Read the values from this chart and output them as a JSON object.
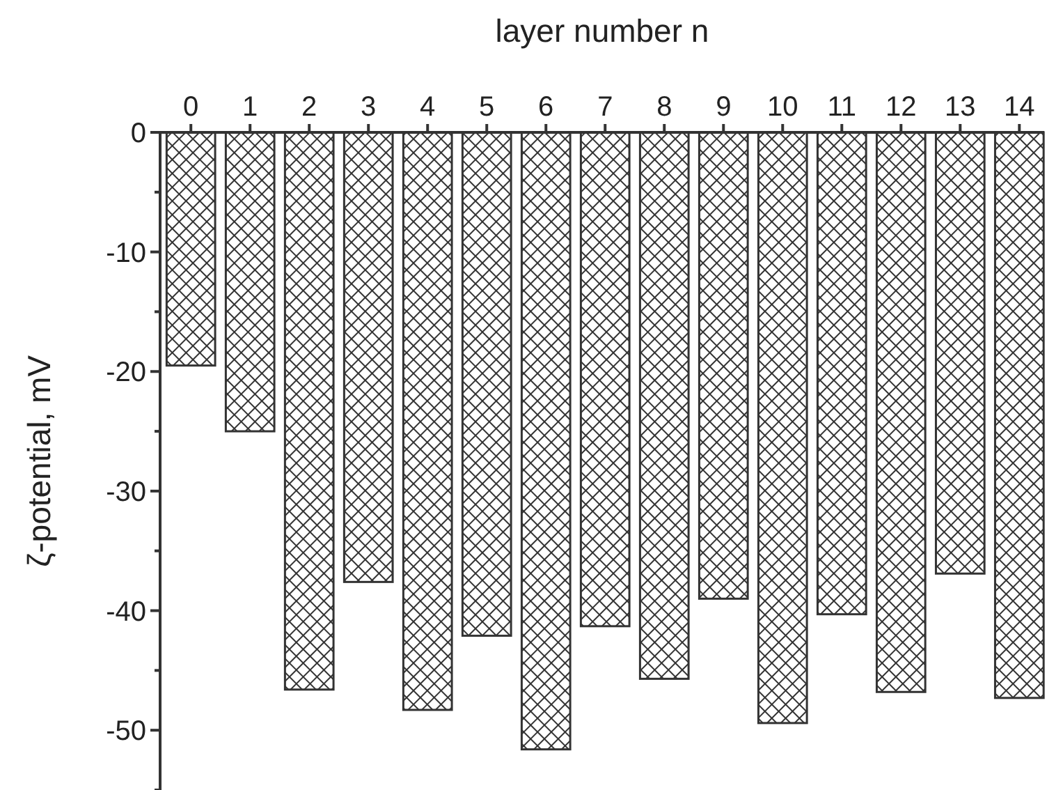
{
  "chart_data": {
    "type": "bar",
    "xlabel": "layer number n",
    "ylabel": "ζ-potential, mV",
    "x": [
      0,
      1,
      2,
      3,
      4,
      5,
      6,
      7,
      8,
      9,
      10,
      11,
      12,
      13,
      14
    ],
    "xlim": [
      -0.52,
      14.42
    ],
    "xticks": [
      0,
      1,
      2,
      3,
      4,
      5,
      6,
      7,
      8,
      9,
      10,
      11,
      12,
      13,
      14
    ],
    "series": [
      {
        "color": "#333333",
        "values": [
          -19.5,
          -25,
          -46.6,
          -37.6,
          -48.3,
          -42.1,
          -51.6,
          -41.3,
          -45.7,
          -39,
          -49.4,
          -40.3,
          -46.8,
          -36.9,
          -47.3
        ]
      }
    ],
    "ylim": [
      -55,
      0
    ],
    "yticks": [
      0,
      {
        "value": -5,
        "label": null
      },
      -10,
      {
        "value": -15,
        "label": null
      },
      -20,
      {
        "value": -25,
        "label": null
      },
      -30,
      {
        "value": -35,
        "label": null
      },
      -40,
      {
        "value": -45,
        "label": null
      },
      -50,
      {
        "value": -55,
        "label": null
      }
    ],
    "grid": false
  }
}
